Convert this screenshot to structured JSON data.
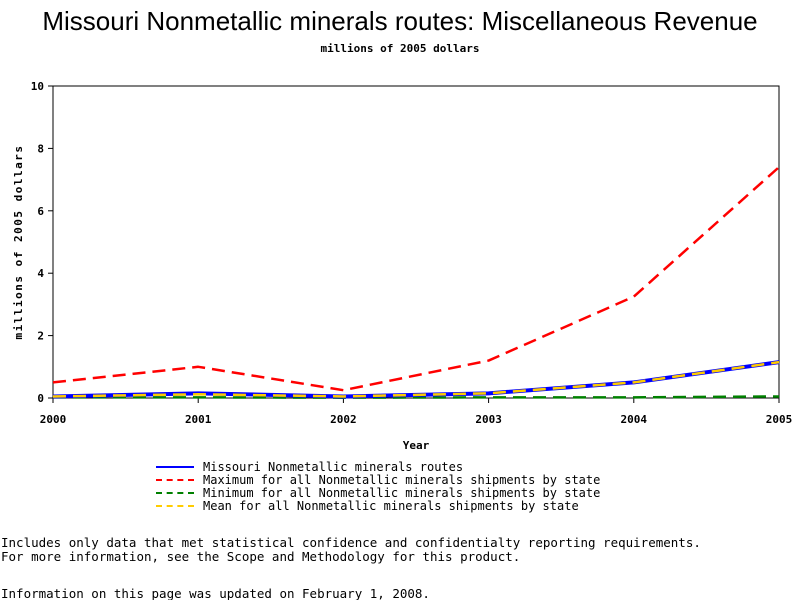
{
  "chart_data": {
    "type": "line",
    "title": "Missouri Nonmetallic minerals routes: Miscellaneous Revenue",
    "subtitle": "millions of 2005 dollars",
    "xlabel": "Year",
    "ylabel": "millions of 2005 dollars",
    "x": [
      2000,
      2001,
      2002,
      2003,
      2004,
      2005
    ],
    "xlim": [
      2000,
      2005
    ],
    "ylim": [
      0,
      10
    ],
    "yticks": [
      0,
      2,
      4,
      6,
      8,
      10
    ],
    "grid": false,
    "legend_position": "bottom",
    "series": [
      {
        "name": "Missouri Nonmetallic minerals routes",
        "values": [
          0.05,
          0.15,
          0.05,
          0.15,
          0.5,
          1.15
        ],
        "color": "#0000ff",
        "style": "solid"
      },
      {
        "name": "Maximum for all Nonmetallic minerals shipments by state",
        "values": [
          0.5,
          1.0,
          0.25,
          1.2,
          3.25,
          7.4
        ],
        "color": "#ff0000",
        "style": "dashed"
      },
      {
        "name": "Minimum for all Nonmetallic minerals shipments by state",
        "values": [
          0.02,
          0.02,
          0.01,
          0.02,
          0.02,
          0.05
        ],
        "color": "#008000",
        "style": "dashed"
      },
      {
        "name": "Mean for all Nonmetallic minerals shipments by state",
        "values": [
          0.05,
          0.12,
          0.05,
          0.15,
          0.5,
          1.15
        ],
        "color": "#ffcc00",
        "style": "dashed"
      }
    ]
  },
  "notes": {
    "line1": "Includes only data that met statistical confidence and confidentialty reporting requirements.",
    "line2": "For more information, see the Scope and Methodology for this product.",
    "updated": "Information on this page was updated on February 1, 2008."
  }
}
